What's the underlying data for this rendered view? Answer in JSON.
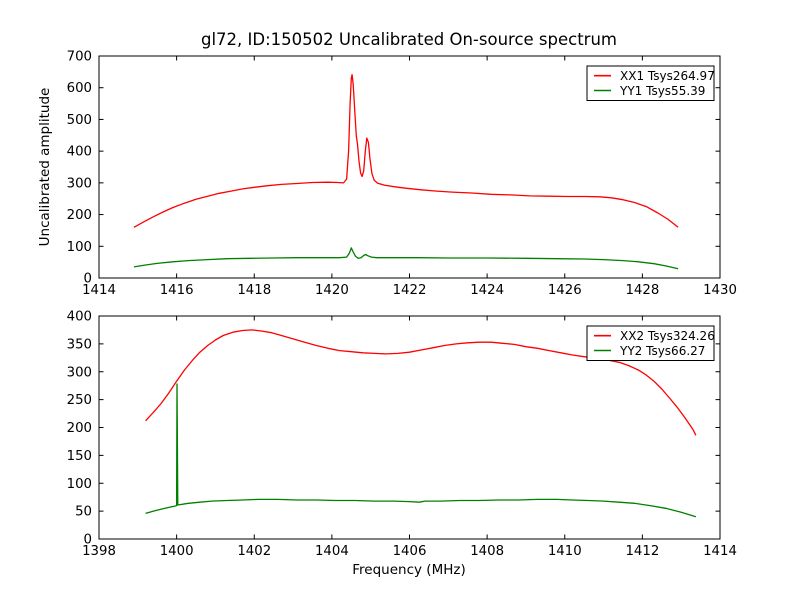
{
  "figure": {
    "title": "gl72, ID:150502 Uncalibrated On-source spectrum",
    "background": "#ffffff",
    "axis_color": "#000000"
  },
  "chart_data": [
    {
      "type": "line",
      "position": "top",
      "xlim": [
        1414,
        1430
      ],
      "ylim": [
        0,
        700
      ],
      "xticks": [
        1414,
        1416,
        1418,
        1420,
        1422,
        1424,
        1426,
        1428,
        1430
      ],
      "yticks": [
        0,
        100,
        200,
        300,
        400,
        500,
        600,
        700
      ],
      "xlabel": "",
      "ylabel": "Uncalibrated amplitude",
      "grid": false,
      "legend": {
        "position": "upper right",
        "entries": [
          {
            "label": "XX1 Tsys264.97",
            "color": "#ff0000"
          },
          {
            "label": "YY1 Tsys55.39",
            "color": "#008000"
          }
        ]
      },
      "series": [
        {
          "name": "XX1",
          "color": "#ff0000",
          "points": [
            [
              1414.9,
              160
            ],
            [
              1415.15,
              177
            ],
            [
              1415.4,
              193
            ],
            [
              1415.65,
              208
            ],
            [
              1415.9,
              222
            ],
            [
              1416.2,
              236
            ],
            [
              1416.5,
              248
            ],
            [
              1416.8,
              258
            ],
            [
              1417.1,
              267
            ],
            [
              1417.4,
              274
            ],
            [
              1417.7,
              281
            ],
            [
              1418.0,
              286
            ],
            [
              1418.35,
              291
            ],
            [
              1418.7,
              295
            ],
            [
              1419.1,
              298
            ],
            [
              1419.5,
              301
            ],
            [
              1419.9,
              302
            ],
            [
              1420.15,
              301
            ],
            [
              1420.3,
              300
            ],
            [
              1420.38,
              312
            ],
            [
              1420.43,
              400
            ],
            [
              1420.47,
              550
            ],
            [
              1420.5,
              630
            ],
            [
              1420.52,
              641
            ],
            [
              1420.55,
              610
            ],
            [
              1420.59,
              525
            ],
            [
              1420.63,
              448
            ],
            [
              1420.66,
              422
            ],
            [
              1420.7,
              368
            ],
            [
              1420.74,
              331
            ],
            [
              1420.78,
              320
            ],
            [
              1420.82,
              338
            ],
            [
              1420.86,
              400
            ],
            [
              1420.9,
              441
            ],
            [
              1420.94,
              428
            ],
            [
              1420.98,
              378
            ],
            [
              1421.03,
              330
            ],
            [
              1421.09,
              308
            ],
            [
              1421.18,
              299
            ],
            [
              1421.35,
              293
            ],
            [
              1421.6,
              288
            ],
            [
              1421.9,
              283
            ],
            [
              1422.3,
              278
            ],
            [
              1422.7,
              274
            ],
            [
              1423.1,
              271
            ],
            [
              1423.6,
              268
            ],
            [
              1424.1,
              264
            ],
            [
              1424.6,
              262
            ],
            [
              1425.1,
              259
            ],
            [
              1425.6,
              258
            ],
            [
              1426.1,
              257
            ],
            [
              1426.5,
              257
            ],
            [
              1426.9,
              256
            ],
            [
              1427.2,
              253
            ],
            [
              1427.5,
              247
            ],
            [
              1427.8,
              238
            ],
            [
              1428.1,
              225
            ],
            [
              1428.4,
              205
            ],
            [
              1428.65,
              186
            ],
            [
              1428.92,
              160
            ]
          ]
        },
        {
          "name": "YY1",
          "color": "#008000",
          "points": [
            [
              1414.9,
              35
            ],
            [
              1415.2,
              41
            ],
            [
              1415.5,
              46
            ],
            [
              1415.9,
              51
            ],
            [
              1416.3,
              55
            ],
            [
              1416.8,
              58
            ],
            [
              1417.3,
              61
            ],
            [
              1417.9,
              62
            ],
            [
              1418.5,
              63
            ],
            [
              1419.1,
              64
            ],
            [
              1419.7,
              64
            ],
            [
              1420.2,
              64
            ],
            [
              1420.38,
              66
            ],
            [
              1420.45,
              78
            ],
            [
              1420.5,
              95
            ],
            [
              1420.55,
              82
            ],
            [
              1420.61,
              68
            ],
            [
              1420.68,
              62
            ],
            [
              1420.75,
              64
            ],
            [
              1420.82,
              71
            ],
            [
              1420.87,
              74
            ],
            [
              1420.93,
              70
            ],
            [
              1421.02,
              66
            ],
            [
              1421.15,
              64
            ],
            [
              1421.5,
              64
            ],
            [
              1422.2,
              64
            ],
            [
              1423.0,
              63
            ],
            [
              1424.0,
              63
            ],
            [
              1425.0,
              62
            ],
            [
              1425.8,
              61
            ],
            [
              1426.5,
              60
            ],
            [
              1427.0,
              58
            ],
            [
              1427.5,
              55
            ],
            [
              1427.9,
              51
            ],
            [
              1428.3,
              45
            ],
            [
              1428.6,
              38
            ],
            [
              1428.92,
              29
            ]
          ]
        }
      ]
    },
    {
      "type": "line",
      "position": "bottom",
      "xlim": [
        1398,
        1414
      ],
      "ylim": [
        0,
        400
      ],
      "xticks": [
        1398,
        1400,
        1402,
        1404,
        1406,
        1408,
        1410,
        1412,
        1414
      ],
      "yticks": [
        0,
        50,
        100,
        150,
        200,
        250,
        300,
        350,
        400
      ],
      "xlabel": "Frequency (MHz)",
      "ylabel": "",
      "grid": false,
      "legend": {
        "position": "upper right",
        "entries": [
          {
            "label": "XX2 Tsys324.26",
            "color": "#ff0000"
          },
          {
            "label": "YY2 Tsys66.27",
            "color": "#008000"
          }
        ]
      },
      "series": [
        {
          "name": "XX2",
          "color": "#ff0000",
          "points": [
            [
              1399.2,
              212
            ],
            [
              1399.4,
              227
            ],
            [
              1399.6,
              243
            ],
            [
              1399.8,
              262
            ],
            [
              1400.0,
              283
            ],
            [
              1400.2,
              303
            ],
            [
              1400.4,
              320
            ],
            [
              1400.6,
              335
            ],
            [
              1400.8,
              347
            ],
            [
              1401.0,
              357
            ],
            [
              1401.2,
              365
            ],
            [
              1401.45,
              371
            ],
            [
              1401.7,
              374
            ],
            [
              1401.95,
              375
            ],
            [
              1402.2,
              373
            ],
            [
              1402.45,
              370
            ],
            [
              1402.7,
              365
            ],
            [
              1403.0,
              359
            ],
            [
              1403.3,
              353
            ],
            [
              1403.6,
              347
            ],
            [
              1403.9,
              342
            ],
            [
              1404.2,
              338
            ],
            [
              1404.5,
              336
            ],
            [
              1404.8,
              334
            ],
            [
              1405.1,
              333
            ],
            [
              1405.4,
              332
            ],
            [
              1405.7,
              333
            ],
            [
              1406.0,
              335
            ],
            [
              1406.3,
              339
            ],
            [
              1406.6,
              343
            ],
            [
              1406.9,
              347
            ],
            [
              1407.2,
              350
            ],
            [
              1407.5,
              352
            ],
            [
              1407.8,
              353
            ],
            [
              1408.1,
              353
            ],
            [
              1408.4,
              351
            ],
            [
              1408.7,
              349
            ],
            [
              1409.0,
              345
            ],
            [
              1409.3,
              342
            ],
            [
              1409.6,
              338
            ],
            [
              1409.9,
              334
            ],
            [
              1410.2,
              330
            ],
            [
              1410.5,
              327
            ],
            [
              1410.8,
              324
            ],
            [
              1411.1,
              321
            ],
            [
              1411.4,
              317
            ],
            [
              1411.65,
              311
            ],
            [
              1411.9,
              303
            ],
            [
              1412.1,
              294
            ],
            [
              1412.3,
              283
            ],
            [
              1412.5,
              269
            ],
            [
              1412.7,
              253
            ],
            [
              1412.9,
              236
            ],
            [
              1413.1,
              217
            ],
            [
              1413.3,
              197
            ],
            [
              1413.38,
              186
            ]
          ]
        },
        {
          "name": "YY2",
          "color": "#008000",
          "points": [
            [
              1399.2,
              46
            ],
            [
              1399.45,
              51
            ],
            [
              1399.7,
              55
            ],
            [
              1399.95,
              59
            ],
            [
              1400.0,
              60
            ],
            [
              1400.01,
              278
            ],
            [
              1400.03,
              61
            ],
            [
              1400.3,
              64
            ],
            [
              1400.6,
              66
            ],
            [
              1400.9,
              68
            ],
            [
              1401.3,
              69
            ],
            [
              1401.7,
              70
            ],
            [
              1402.1,
              71
            ],
            [
              1402.6,
              71
            ],
            [
              1403.1,
              70
            ],
            [
              1403.6,
              70
            ],
            [
              1404.1,
              69
            ],
            [
              1404.6,
              69
            ],
            [
              1405.1,
              68
            ],
            [
              1405.6,
              68
            ],
            [
              1406.0,
              67
            ],
            [
              1406.25,
              66
            ],
            [
              1406.4,
              68
            ],
            [
              1406.8,
              68
            ],
            [
              1407.3,
              69
            ],
            [
              1407.8,
              69
            ],
            [
              1408.3,
              70
            ],
            [
              1408.8,
              70
            ],
            [
              1409.3,
              71
            ],
            [
              1409.8,
              71
            ],
            [
              1410.2,
              70
            ],
            [
              1410.6,
              69
            ],
            [
              1411.0,
              68
            ],
            [
              1411.4,
              66
            ],
            [
              1411.8,
              64
            ],
            [
              1412.2,
              60
            ],
            [
              1412.6,
              55
            ],
            [
              1413.0,
              48
            ],
            [
              1413.38,
              40
            ]
          ]
        }
      ]
    }
  ]
}
